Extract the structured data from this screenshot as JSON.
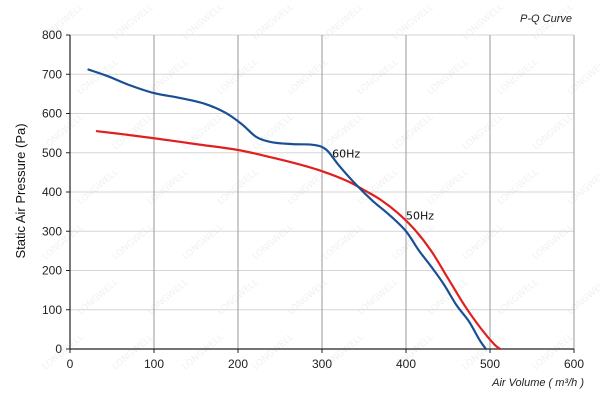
{
  "chart_data": {
    "type": "line",
    "title": "P-Q Curve",
    "xlabel": "Air Volume ( m³/h )",
    "ylabel": "Static Air Pressure  (Pa)",
    "xlim": [
      0,
      600
    ],
    "ylim": [
      0,
      800
    ],
    "x_ticks": [
      0,
      100,
      200,
      300,
      400,
      500,
      600
    ],
    "y_ticks": [
      0,
      100,
      200,
      300,
      400,
      500,
      600,
      700,
      800
    ],
    "grid": true,
    "watermark": "LONGWELL",
    "series": [
      {
        "name": "60Hz",
        "color": "#1a4f95",
        "points": [
          [
            22,
            712
          ],
          [
            45,
            695
          ],
          [
            70,
            673
          ],
          [
            100,
            652
          ],
          [
            130,
            640
          ],
          [
            160,
            625
          ],
          [
            185,
            602
          ],
          [
            205,
            572
          ],
          [
            222,
            540
          ],
          [
            240,
            527
          ],
          [
            265,
            522
          ],
          [
            290,
            520
          ],
          [
            305,
            508
          ],
          [
            320,
            468
          ],
          [
            340,
            420
          ],
          [
            360,
            378
          ],
          [
            380,
            342
          ],
          [
            400,
            300
          ],
          [
            415,
            252
          ],
          [
            430,
            210
          ],
          [
            445,
            165
          ],
          [
            460,
            112
          ],
          [
            475,
            70
          ],
          [
            487,
            25
          ],
          [
            495,
            0
          ]
        ]
      },
      {
        "name": "50Hz",
        "color": "#e02020",
        "points": [
          [
            32,
            555
          ],
          [
            60,
            548
          ],
          [
            100,
            537
          ],
          [
            150,
            522
          ],
          [
            200,
            507
          ],
          [
            240,
            488
          ],
          [
            270,
            472
          ],
          [
            300,
            453
          ],
          [
            330,
            428
          ],
          [
            350,
            405
          ],
          [
            370,
            380
          ],
          [
            390,
            347
          ],
          [
            410,
            305
          ],
          [
            430,
            250
          ],
          [
            450,
            180
          ],
          [
            470,
            110
          ],
          [
            490,
            50
          ],
          [
            505,
            12
          ],
          [
            512,
            0
          ]
        ]
      }
    ],
    "annotations": [
      {
        "text": "60Hz",
        "x": 312,
        "y": 488
      },
      {
        "text": "50Hz",
        "x": 400,
        "y": 330
      }
    ]
  }
}
